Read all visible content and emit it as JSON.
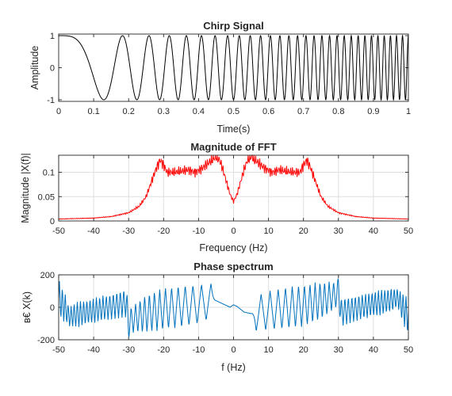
{
  "chart_data": [
    {
      "type": "line",
      "title": "Chirp Signal",
      "xlabel": "Time(s)",
      "ylabel": "Amplitude",
      "xlim": [
        0,
        1
      ],
      "ylim": [
        -1.05,
        1.05
      ],
      "xticks": [
        0,
        0.1,
        0.2,
        0.3,
        0.4,
        0.5,
        0.6,
        0.7,
        0.8,
        0.9,
        1
      ],
      "xticklabels": [
        "0",
        "0.1",
        "0.2",
        "0.3",
        "0.4",
        "0.5",
        "0.6",
        "0.7",
        "0.8",
        "0.9",
        "1"
      ],
      "yticks": [
        -1,
        0,
        1
      ],
      "yticklabels": [
        "-1",
        "0",
        "1"
      ],
      "grid": false,
      "color": "#000000",
      "signal": {
        "form": "cos(pi*k*t^2)",
        "k": 60,
        "t_start": 0,
        "t_end": 1
      }
    },
    {
      "type": "line",
      "title": "Magnitude of FFT",
      "xlabel": "Frequency (Hz)",
      "ylabel": "Magnitude |X(f)|",
      "xlim": [
        -50,
        50
      ],
      "ylim": [
        0,
        0.135
      ],
      "xticks": [
        -50,
        -40,
        -30,
        -20,
        -10,
        0,
        10,
        20,
        30,
        40,
        50
      ],
      "xticklabels": [
        "-50",
        "-40",
        "-30",
        "-20",
        "-10",
        "0",
        "10",
        "20",
        "30",
        "40",
        "50"
      ],
      "yticks": [
        0,
        0.05,
        0.1
      ],
      "yticklabels": [
        "0",
        "0.05",
        "0.1"
      ],
      "grid": true,
      "color": "#ff0000",
      "x": [
        -50,
        -40,
        -35,
        -30,
        -27,
        -25,
        -23,
        -22,
        -21,
        -20,
        -19,
        -17,
        -15,
        -13,
        -11,
        -9,
        -7,
        -5,
        -4,
        -3,
        -2,
        -1,
        0,
        1,
        2,
        3,
        4,
        5,
        7,
        9,
        11,
        13,
        15,
        17,
        19,
        20,
        21,
        22,
        23,
        25,
        27,
        30,
        35,
        40,
        50
      ],
      "y": [
        0.004,
        0.006,
        0.009,
        0.017,
        0.03,
        0.05,
        0.09,
        0.11,
        0.125,
        0.115,
        0.1,
        0.1,
        0.102,
        0.105,
        0.1,
        0.108,
        0.12,
        0.132,
        0.125,
        0.105,
        0.08,
        0.055,
        0.04,
        0.055,
        0.08,
        0.105,
        0.125,
        0.132,
        0.12,
        0.108,
        0.1,
        0.105,
        0.102,
        0.1,
        0.1,
        0.115,
        0.125,
        0.11,
        0.09,
        0.05,
        0.03,
        0.017,
        0.009,
        0.006,
        0.004
      ]
    },
    {
      "type": "line",
      "title": "Phase spectrum",
      "xlabel": "f (Hz)",
      "ylabel": "в€ X(k)",
      "xlim": [
        -50,
        50
      ],
      "ylim": [
        -200,
        200
      ],
      "xticks": [
        -50,
        -40,
        -30,
        -20,
        -10,
        0,
        10,
        20,
        30,
        40,
        50
      ],
      "xticklabels": [
        "-50",
        "-40",
        "-30",
        "-20",
        "-10",
        "0",
        "10",
        "20",
        "30",
        "40",
        "50"
      ],
      "yticks": [
        -200,
        0,
        200
      ],
      "yticklabels": [
        "-200",
        "0",
        "200"
      ],
      "grid": true,
      "color": "#0072bd",
      "phase_envelope": {
        "x": [
          -50,
          -49,
          -48,
          -47,
          -45,
          -40,
          -35,
          -30.5,
          -30,
          -29.5,
          -25,
          -20,
          -15,
          -10,
          -6.5,
          -5,
          -3,
          -1,
          0,
          1,
          3,
          5,
          6.5,
          10,
          15,
          20,
          25,
          29.5,
          30,
          30.5,
          35,
          40,
          45,
          47,
          48,
          49,
          50
        ],
        "center": [
          60,
          20,
          -10,
          -60,
          -45,
          -20,
          5,
          30,
          -150,
          -80,
          -40,
          -10,
          5,
          20,
          40,
          40,
          20,
          0,
          15,
          5,
          -30,
          -40,
          -40,
          -20,
          -5,
          10,
          40,
          80,
          150,
          -30,
          -5,
          20,
          45,
          60,
          10,
          -20,
          -60
        ],
        "amplitude": [
          120,
          110,
          90,
          60,
          80,
          80,
          80,
          90,
          40,
          80,
          120,
          130,
          130,
          120,
          110,
          10,
          5,
          5,
          2,
          5,
          5,
          10,
          110,
          120,
          130,
          130,
          120,
          80,
          40,
          90,
          80,
          80,
          80,
          60,
          90,
          110,
          120
        ],
        "oscillations_per_unit": [
          1.2,
          1.2,
          1.2,
          1.2,
          1.1,
          1.1,
          1.0,
          1.0,
          1.0,
          0.8,
          0.75,
          0.6,
          0.5,
          0.4,
          0.35,
          0,
          0,
          0,
          0,
          0,
          0,
          0,
          0.35,
          0.4,
          0.5,
          0.6,
          0.75,
          0.8,
          1.0,
          1.0,
          1.0,
          1.1,
          1.1,
          1.2,
          1.2,
          1.2,
          1.2
        ]
      }
    }
  ]
}
